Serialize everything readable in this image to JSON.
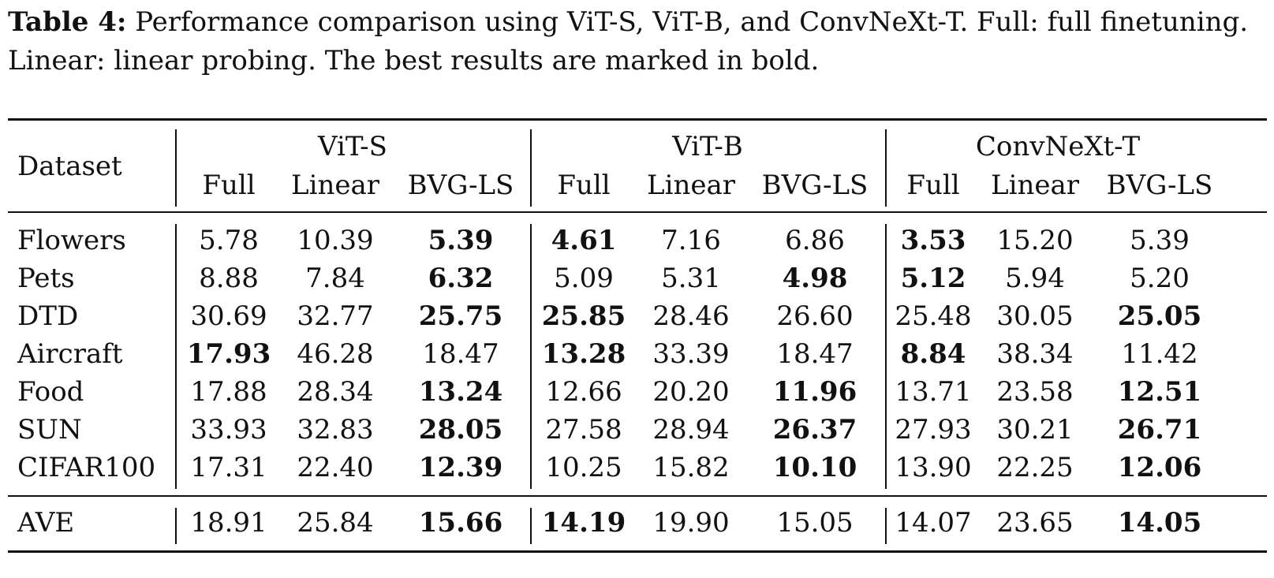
{
  "caption": {
    "label": "Table 4:",
    "text": " Performance comparison using ViT-S, ViT-B, and ConvNeXt-T. Full: full finetuning. Linear: linear probing. The best results are marked in bold."
  },
  "table": {
    "row_header": "Dataset",
    "groups": [
      "ViT-S",
      "ViT-B",
      "ConvNeXt-T"
    ],
    "subcolumns": [
      "Full",
      "Linear",
      "BVG-LS",
      "Full",
      "Linear",
      "BVG-LS",
      "Full",
      "Linear",
      "BVG-LS"
    ],
    "rows": [
      {
        "name": "Flowers",
        "values": [
          "5.78",
          "10.39",
          "5.39",
          "4.61",
          "7.16",
          "6.86",
          "3.53",
          "15.20",
          "5.39"
        ],
        "best": [
          2,
          3,
          6
        ]
      },
      {
        "name": "Pets",
        "values": [
          "8.88",
          "7.84",
          "6.32",
          "5.09",
          "5.31",
          "4.98",
          "5.12",
          "5.94",
          "5.20"
        ],
        "best": [
          2,
          5,
          6
        ]
      },
      {
        "name": "DTD",
        "values": [
          "30.69",
          "32.77",
          "25.75",
          "25.85",
          "28.46",
          "26.60",
          "25.48",
          "30.05",
          "25.05"
        ],
        "best": [
          2,
          3,
          8
        ]
      },
      {
        "name": "Aircraft",
        "values": [
          "17.93",
          "46.28",
          "18.47",
          "13.28",
          "33.39",
          "18.47",
          "8.84",
          "38.34",
          "11.42"
        ],
        "best": [
          0,
          3,
          6
        ]
      },
      {
        "name": "Food",
        "values": [
          "17.88",
          "28.34",
          "13.24",
          "12.66",
          "20.20",
          "11.96",
          "13.71",
          "23.58",
          "12.51"
        ],
        "best": [
          2,
          5,
          8
        ]
      },
      {
        "name": "SUN",
        "values": [
          "33.93",
          "32.83",
          "28.05",
          "27.58",
          "28.94",
          "26.37",
          "27.93",
          "30.21",
          "26.71"
        ],
        "best": [
          2,
          5,
          8
        ]
      },
      {
        "name": "CIFAR100",
        "values": [
          "17.31",
          "22.40",
          "12.39",
          "10.25",
          "15.82",
          "10.10",
          "13.90",
          "22.25",
          "12.06"
        ],
        "best": [
          2,
          5,
          8
        ]
      }
    ],
    "summary": {
      "name": "AVE",
      "values": [
        "18.91",
        "25.84",
        "15.66",
        "14.19",
        "19.90",
        "15.05",
        "14.07",
        "23.65",
        "14.05"
      ],
      "best": [
        2,
        3,
        8
      ]
    }
  }
}
